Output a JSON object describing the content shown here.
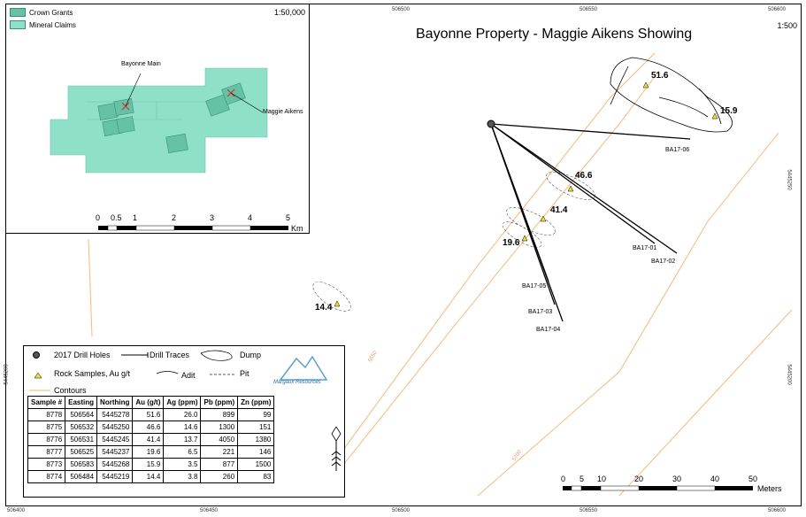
{
  "title": "Bayonne Property - Maggie Aikens Showing",
  "main_scale": "1:500",
  "inset": {
    "scale": "1:50,000",
    "legend": [
      {
        "label": "Crown Grants",
        "color": "#66c2a5"
      },
      {
        "label": "Mineral Claims",
        "color": "#8ee0c8"
      }
    ],
    "labels": {
      "bayonne_main": "Bayonne Main",
      "maggie_aikens": "Maggie Aikens"
    },
    "scale_ticks": [
      "0",
      "0.5",
      "1",
      "2",
      "3",
      "4",
      "5"
    ],
    "scale_unit": "Km"
  },
  "grid": {
    "top": [
      "506450",
      "506500",
      "506550",
      "506600"
    ],
    "bottom": [
      "506400",
      "506450",
      "506500",
      "506550",
      "506600"
    ],
    "right": [
      "5445250",
      "5445200"
    ],
    "left": [
      "5445200"
    ]
  },
  "drill_holes": [
    "BA17-06",
    "BA17-01",
    "BA17-02",
    "BA17-05",
    "BA17-03",
    "BA17-04"
  ],
  "rock_samples": [
    "51.6",
    "15.9",
    "46.6",
    "41.4",
    "19.6",
    "14.4"
  ],
  "contours": [
    "5550",
    "5700"
  ],
  "legend": {
    "drill_holes": "2017 Drill Holes",
    "drill_traces": "Drill Traces",
    "dump": "Dump",
    "rock_samples": "Rock Samples, Au g/t",
    "adit": "Adit",
    "pit": "Pit",
    "contours": "Contours",
    "logo": "Margaux Resources"
  },
  "table": {
    "headers": [
      "Sample #",
      "Easting",
      "Northing",
      "Au (g/t)",
      "Ag (ppm)",
      "Pb (ppm)",
      "Zn (ppm)"
    ],
    "rows": [
      [
        "8778",
        "506564",
        "5445278",
        "51.6",
        "26.0",
        "899",
        "99"
      ],
      [
        "8775",
        "506532",
        "5445250",
        "46.6",
        "14.6",
        "1300",
        "151"
      ],
      [
        "8776",
        "506531",
        "5445245",
        "41.4",
        "13.7",
        "4050",
        "1380"
      ],
      [
        "8777",
        "506525",
        "5445237",
        "19.6",
        "6.5",
        "221",
        "146"
      ],
      [
        "8773",
        "506583",
        "5445268",
        "15.9",
        "3.5",
        "877",
        "1500"
      ],
      [
        "8774",
        "506484",
        "5445219",
        "14.4",
        "3.8",
        "260",
        "83"
      ]
    ]
  },
  "scale_bar": {
    "ticks": [
      "0",
      "5",
      "10",
      "20",
      "30",
      "40",
      "50"
    ],
    "unit": "Meters"
  },
  "colors": {
    "contour": "#f5b87a",
    "claims": "#8ee0c8",
    "grants": "#66c2a5",
    "sample": "#f0e030"
  }
}
